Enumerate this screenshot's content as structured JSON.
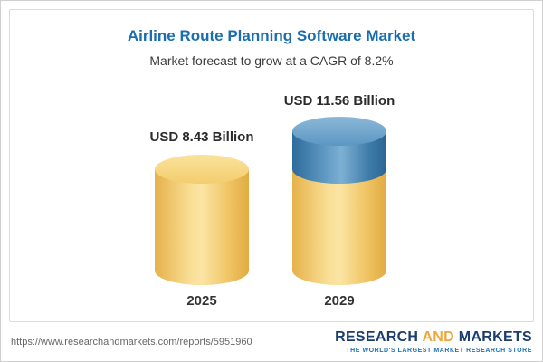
{
  "chart_data": {
    "type": "bar",
    "title": "Airline Route Planning Software Market",
    "subtitle": "Market forecast to grow at a CAGR of 8.2%",
    "cagr_percent": 8.2,
    "unit": "USD Billion",
    "categories": [
      "2025",
      "2029"
    ],
    "values": [
      8.43,
      11.56
    ],
    "value_labels": [
      "USD 8.43 Billion",
      "USD 11.56 Billion"
    ],
    "legend_position": "none",
    "grid": false,
    "colors": {
      "bar_base": "#f3cd6e",
      "bar_growth_segment": "#3f7fae",
      "title_text": "#1a6eaf"
    }
  },
  "footer": {
    "report_url": "https://www.researchandmarkets.com/reports/5951960",
    "logo": {
      "word1": "RESEARCH",
      "word2": "AND",
      "word3": "MARKETS",
      "tagline": "THE WORLD'S LARGEST MARKET RESEARCH STORE"
    }
  }
}
